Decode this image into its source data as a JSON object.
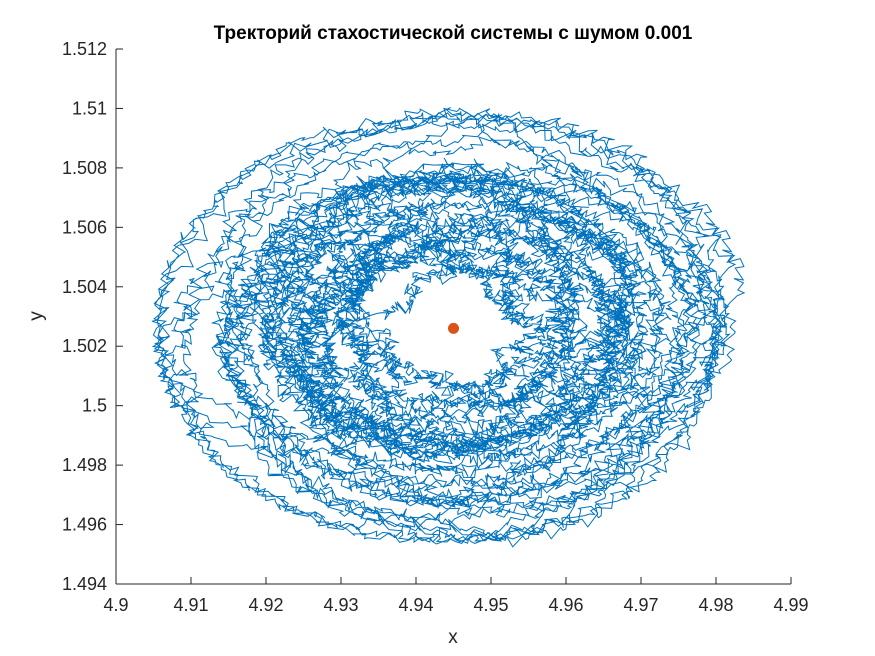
{
  "chart_data": {
    "type": "line",
    "title": "Тректорий стахостической системы с шумом 0.001",
    "xlabel": "x",
    "ylabel": "y",
    "xlim": [
      4.9,
      4.99
    ],
    "ylim": [
      1.494,
      1.512
    ],
    "grid": false,
    "xticks": [
      {
        "value": 4.9,
        "label": "4.9"
      },
      {
        "value": 4.91,
        "label": "4.91"
      },
      {
        "value": 4.92,
        "label": "4.92"
      },
      {
        "value": 4.93,
        "label": "4.93"
      },
      {
        "value": 4.94,
        "label": "4.94"
      },
      {
        "value": 4.95,
        "label": "4.95"
      },
      {
        "value": 4.96,
        "label": "4.96"
      },
      {
        "value": 4.97,
        "label": "4.97"
      },
      {
        "value": 4.98,
        "label": "4.98"
      },
      {
        "value": 4.99,
        "label": "4.99"
      }
    ],
    "yticks": [
      {
        "value": 1.494,
        "label": "1.494"
      },
      {
        "value": 1.496,
        "label": "1.496"
      },
      {
        "value": 1.498,
        "label": "1.498"
      },
      {
        "value": 1.5,
        "label": "1.5"
      },
      {
        "value": 1.502,
        "label": "1.502"
      },
      {
        "value": 1.504,
        "label": "1.504"
      },
      {
        "value": 1.506,
        "label": "1.506"
      },
      {
        "value": 1.508,
        "label": "1.508"
      },
      {
        "value": 1.51,
        "label": "1.51"
      },
      {
        "value": 1.512,
        "label": "1.512"
      }
    ],
    "series": [
      {
        "style": "line",
        "color": "#0072BD",
        "extent": {
          "x": [
            4.902,
            4.981
          ],
          "y": [
            1.4951,
            1.5108
          ]
        },
        "center": {
          "x": 4.945,
          "y": 1.5026
        }
      },
      {
        "style": "marker",
        "color": "#D95319",
        "points": [
          {
            "x": 4.945,
            "y": 1.5026
          }
        ]
      }
    ]
  }
}
